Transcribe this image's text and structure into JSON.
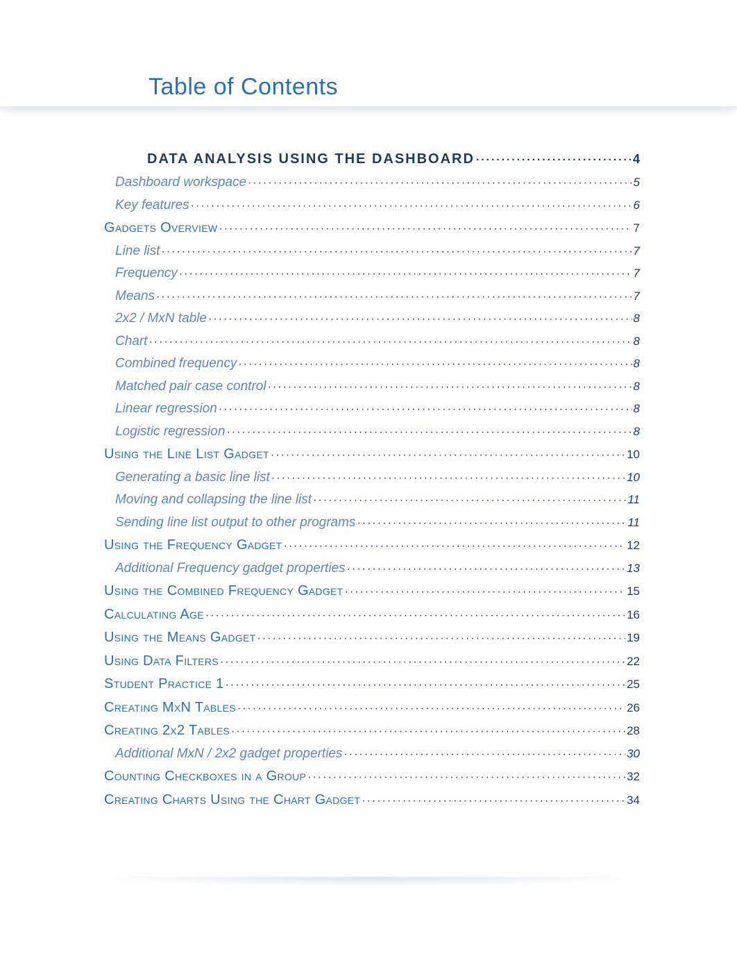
{
  "title": "Table of Contents",
  "colors": {
    "title": "#2a6fb5",
    "section": "#2a6fb5",
    "sub_italic": "#5d88b3",
    "body_text": "#1f3b57",
    "underline": "#e8ecf0",
    "background": "#ffffff"
  },
  "typography": {
    "title_fontsize": 34,
    "h1_fontsize": 20,
    "section_fontsize": 20,
    "sub_fontsize": 19,
    "page_fontsize": 17
  },
  "entries": [
    {
      "level": "h1",
      "label": "DATA ANALYSIS USING THE DASHBOARD",
      "page": "4"
    },
    {
      "level": "sub",
      "label": "Dashboard workspace",
      "page": "5"
    },
    {
      "level": "sub",
      "label": "Key features",
      "page": "6"
    },
    {
      "level": "sec",
      "label": "Gadgets Overview",
      "page": "7"
    },
    {
      "level": "sub",
      "label": "Line list",
      "page": "7"
    },
    {
      "level": "sub",
      "label": "Frequency",
      "page": "7"
    },
    {
      "level": "sub",
      "label": "Means",
      "page": "7"
    },
    {
      "level": "sub",
      "label": "2x2 / MxN table",
      "page": "8"
    },
    {
      "level": "sub",
      "label": "Chart",
      "page": "8"
    },
    {
      "level": "sub",
      "label": "Combined frequency",
      "page": "8"
    },
    {
      "level": "sub",
      "label": "Matched pair case control",
      "page": "8"
    },
    {
      "level": "sub",
      "label": "Linear regression",
      "page": "8"
    },
    {
      "level": "sub",
      "label": "Logistic regression",
      "page": "8"
    },
    {
      "level": "sec",
      "label": "Using the Line List Gadget",
      "page": "10"
    },
    {
      "level": "sub",
      "label": "Generating a basic line list",
      "page": "10"
    },
    {
      "level": "sub",
      "label": "Moving and collapsing the line list",
      "page": "11"
    },
    {
      "level": "sub",
      "label": "Sending line list output to other programs",
      "page": "11"
    },
    {
      "level": "sec",
      "label": "Using the Frequency Gadget",
      "page": "12"
    },
    {
      "level": "sub",
      "label": "Additional Frequency gadget properties",
      "page": "13"
    },
    {
      "level": "sec",
      "label": "Using the Combined Frequency Gadget",
      "page": "15"
    },
    {
      "level": "sec",
      "label": "Calculating Age",
      "page": "16"
    },
    {
      "level": "sec",
      "label": "Using the Means Gadget",
      "page": "19"
    },
    {
      "level": "sec",
      "label": "Using Data Filters",
      "page": "22"
    },
    {
      "level": "sec",
      "label": "Student Practice 1",
      "page": "25"
    },
    {
      "level": "sec",
      "label": "Creating MxN Tables",
      "page": "26"
    },
    {
      "level": "sec",
      "label": "Creating 2x2 Tables",
      "page": "28"
    },
    {
      "level": "sub",
      "label": "Additional MxN / 2x2 gadget properties",
      "page": "30"
    },
    {
      "level": "sec",
      "label": "Counting Checkboxes in a Group",
      "page": "32"
    },
    {
      "level": "sec",
      "label": "Creating Charts Using the Chart Gadget",
      "page": "34"
    }
  ]
}
